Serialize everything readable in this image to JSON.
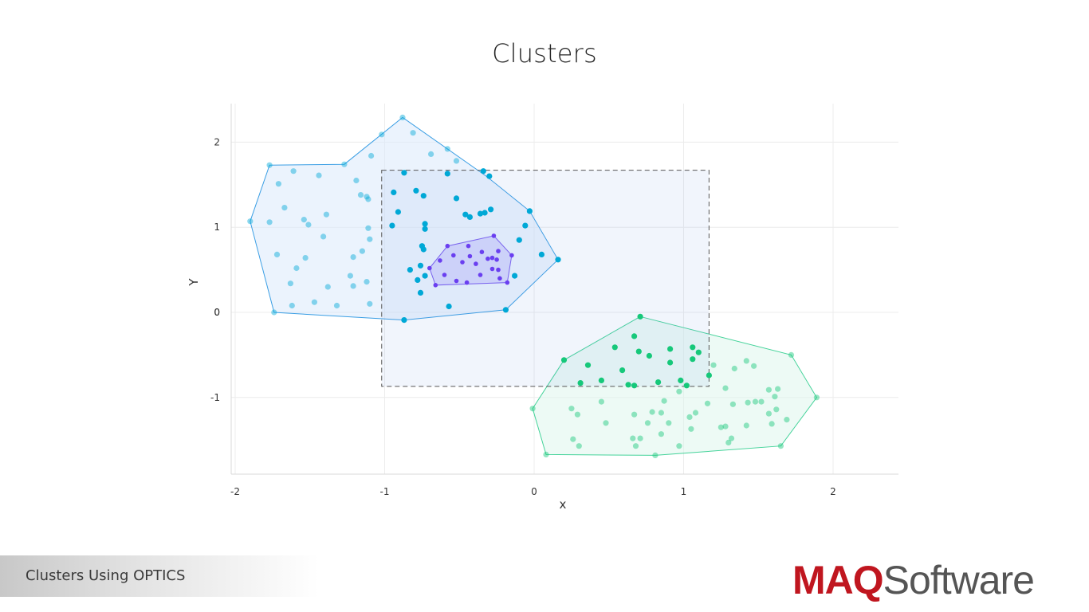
{
  "slide": {
    "title": "Clusters",
    "footer_text": "Clusters Using OPTICS",
    "logo_part1": "MAQ",
    "logo_part2": "Software"
  },
  "chart_data": {
    "type": "scatter",
    "title": "Clusters",
    "xlabel": "x",
    "ylabel": "Y",
    "xlim": [
      -2.05,
      2.45
    ],
    "ylim": [
      -1.9,
      2.45
    ],
    "xticks": [
      -2,
      -1,
      0,
      1,
      2
    ],
    "yticks": [
      -1,
      0,
      1,
      2
    ],
    "grid": true,
    "selection_box": {
      "x": [
        -1.02,
        1.17
      ],
      "y": [
        -0.87,
        1.67
      ]
    },
    "series": [
      {
        "color": "#00a8d6",
        "fill": "#dbe9fb",
        "stroke": "#3a9ee4",
        "hull": [
          [
            -1.9,
            1.07
          ],
          [
            -1.77,
            1.73
          ],
          [
            -1.27,
            1.74
          ],
          [
            -0.88,
            2.29
          ],
          [
            -0.32,
            1.6
          ],
          [
            -0.03,
            1.19
          ],
          [
            0.16,
            0.62
          ],
          [
            -0.19,
            0.03
          ],
          [
            -0.87,
            -0.09
          ],
          [
            -1.74,
            0.0
          ]
        ],
        "points": [
          [
            -1.9,
            1.07
          ],
          [
            -1.77,
            1.73
          ],
          [
            -1.61,
            1.66
          ],
          [
            -1.71,
            1.51
          ],
          [
            -1.67,
            1.23
          ],
          [
            -1.77,
            1.06
          ],
          [
            -1.54,
            1.09
          ],
          [
            -1.44,
            1.61
          ],
          [
            -1.27,
            1.74
          ],
          [
            -1.19,
            1.55
          ],
          [
            -1.16,
            1.38
          ],
          [
            -1.12,
            1.36
          ],
          [
            -1.11,
            1.33
          ],
          [
            -1.09,
            1.84
          ],
          [
            -1.02,
            2.09
          ],
          [
            -0.88,
            2.29
          ],
          [
            -0.81,
            2.11
          ],
          [
            -0.69,
            1.86
          ],
          [
            -0.58,
            1.92
          ],
          [
            -0.52,
            1.78
          ],
          [
            -1.39,
            1.15
          ],
          [
            -1.51,
            1.03
          ],
          [
            -1.41,
            0.89
          ],
          [
            -1.11,
            0.99
          ],
          [
            -1.1,
            0.86
          ],
          [
            -1.15,
            0.72
          ],
          [
            -1.21,
            0.65
          ],
          [
            -1.72,
            0.68
          ],
          [
            -1.59,
            0.52
          ],
          [
            -1.53,
            0.64
          ],
          [
            -1.23,
            0.43
          ],
          [
            -1.12,
            0.36
          ],
          [
            -1.63,
            0.34
          ],
          [
            -1.38,
            0.3
          ],
          [
            -1.21,
            0.31
          ],
          [
            -1.74,
            0.0
          ],
          [
            -1.62,
            0.08
          ],
          [
            -1.47,
            0.12
          ],
          [
            -1.32,
            0.08
          ],
          [
            -1.1,
            0.1
          ],
          [
            -0.87,
            1.64
          ],
          [
            -0.94,
            1.41
          ],
          [
            -0.91,
            1.18
          ],
          [
            -0.95,
            1.02
          ],
          [
            -0.79,
            1.43
          ],
          [
            -0.74,
            1.37
          ],
          [
            -0.73,
            1.04
          ],
          [
            -0.73,
            0.98
          ],
          [
            -0.58,
            1.63
          ],
          [
            -0.52,
            1.34
          ],
          [
            -0.46,
            1.15
          ],
          [
            -0.43,
            1.12
          ],
          [
            -0.36,
            1.16
          ],
          [
            -0.33,
            1.17
          ],
          [
            -0.29,
            1.21
          ],
          [
            -0.34,
            1.66
          ],
          [
            -0.3,
            1.6
          ],
          [
            -0.03,
            1.19
          ],
          [
            -0.06,
            1.02
          ],
          [
            -0.1,
            0.85
          ],
          [
            0.05,
            0.68
          ],
          [
            0.16,
            0.62
          ],
          [
            -0.75,
            0.78
          ],
          [
            -0.74,
            0.74
          ],
          [
            -0.76,
            0.55
          ],
          [
            -0.83,
            0.5
          ],
          [
            -0.78,
            0.38
          ],
          [
            -0.73,
            0.43
          ],
          [
            -0.76,
            0.23
          ],
          [
            -0.13,
            0.43
          ],
          [
            -0.57,
            0.07
          ],
          [
            -0.19,
            0.03
          ],
          [
            -0.87,
            -0.09
          ]
        ]
      },
      {
        "color": "#6a3ff0",
        "fill": "#c4c0fb",
        "stroke": "#7b5ef0",
        "hull": [
          [
            -0.7,
            0.52
          ],
          [
            -0.58,
            0.78
          ],
          [
            -0.27,
            0.9
          ],
          [
            -0.15,
            0.67
          ],
          [
            -0.18,
            0.35
          ],
          [
            -0.66,
            0.32
          ]
        ],
        "points": [
          [
            -0.7,
            0.52
          ],
          [
            -0.63,
            0.61
          ],
          [
            -0.58,
            0.78
          ],
          [
            -0.54,
            0.67
          ],
          [
            -0.48,
            0.59
          ],
          [
            -0.44,
            0.78
          ],
          [
            -0.43,
            0.66
          ],
          [
            -0.39,
            0.57
          ],
          [
            -0.35,
            0.71
          ],
          [
            -0.31,
            0.63
          ],
          [
            -0.27,
            0.9
          ],
          [
            -0.24,
            0.72
          ],
          [
            -0.28,
            0.64
          ],
          [
            -0.25,
            0.62
          ],
          [
            -0.28,
            0.51
          ],
          [
            -0.24,
            0.5
          ],
          [
            -0.23,
            0.4
          ],
          [
            -0.15,
            0.67
          ],
          [
            -0.36,
            0.44
          ],
          [
            -0.45,
            0.35
          ],
          [
            -0.52,
            0.37
          ],
          [
            -0.6,
            0.44
          ],
          [
            -0.66,
            0.32
          ],
          [
            -0.18,
            0.35
          ]
        ]
      },
      {
        "color": "#16c87a",
        "fill": "#dff6ec",
        "stroke": "#45d39a",
        "hull": [
          [
            0.71,
            -0.05
          ],
          [
            1.72,
            -0.5
          ],
          [
            1.89,
            -1.0
          ],
          [
            1.65,
            -1.57
          ],
          [
            0.81,
            -1.68
          ],
          [
            0.08,
            -1.67
          ],
          [
            -0.01,
            -1.13
          ],
          [
            0.2,
            -0.56
          ]
        ],
        "points": [
          [
            0.71,
            -0.05
          ],
          [
            0.67,
            -0.28
          ],
          [
            0.54,
            -0.41
          ],
          [
            0.7,
            -0.46
          ],
          [
            0.77,
            -0.51
          ],
          [
            0.91,
            -0.43
          ],
          [
            1.06,
            -0.41
          ],
          [
            1.1,
            -0.47
          ],
          [
            1.06,
            -0.55
          ],
          [
            0.91,
            -0.59
          ],
          [
            0.2,
            -0.56
          ],
          [
            0.36,
            -0.62
          ],
          [
            0.59,
            -0.68
          ],
          [
            0.45,
            -0.8
          ],
          [
            0.31,
            -0.83
          ],
          [
            0.63,
            -0.85
          ],
          [
            0.67,
            -0.86
          ],
          [
            0.83,
            -0.82
          ],
          [
            0.98,
            -0.8
          ],
          [
            1.02,
            -0.86
          ],
          [
            1.17,
            -0.74
          ],
          [
            1.2,
            -0.62
          ],
          [
            1.72,
            -0.5
          ],
          [
            1.42,
            -0.57
          ],
          [
            1.47,
            -0.63
          ],
          [
            1.34,
            -0.66
          ],
          [
            1.28,
            -0.89
          ],
          [
            1.63,
            -0.9
          ],
          [
            1.57,
            -0.91
          ],
          [
            1.61,
            -0.99
          ],
          [
            1.89,
            -1.0
          ],
          [
            1.52,
            -1.05
          ],
          [
            1.48,
            -1.05
          ],
          [
            1.43,
            -1.06
          ],
          [
            1.62,
            -1.14
          ],
          [
            1.57,
            -1.19
          ],
          [
            1.69,
            -1.26
          ],
          [
            1.59,
            -1.31
          ],
          [
            1.42,
            -1.33
          ],
          [
            1.33,
            -1.08
          ],
          [
            1.28,
            -1.34
          ],
          [
            1.25,
            -1.35
          ],
          [
            1.32,
            -1.48
          ],
          [
            1.3,
            -1.53
          ],
          [
            1.65,
            -1.57
          ],
          [
            0.97,
            -0.93
          ],
          [
            0.87,
            -1.04
          ],
          [
            1.16,
            -1.07
          ],
          [
            1.08,
            -1.18
          ],
          [
            1.04,
            -1.23
          ],
          [
            1.05,
            -1.37
          ],
          [
            0.9,
            -1.3
          ],
          [
            0.97,
            -1.57
          ],
          [
            0.79,
            -1.17
          ],
          [
            0.85,
            -1.18
          ],
          [
            0.76,
            -1.3
          ],
          [
            0.67,
            -1.2
          ],
          [
            0.85,
            -1.43
          ],
          [
            0.71,
            -1.48
          ],
          [
            0.66,
            -1.48
          ],
          [
            0.68,
            -1.57
          ],
          [
            0.81,
            -1.68
          ],
          [
            0.45,
            -1.05
          ],
          [
            0.48,
            -1.3
          ],
          [
            0.25,
            -1.13
          ],
          [
            0.29,
            -1.2
          ],
          [
            0.26,
            -1.49
          ],
          [
            0.3,
            -1.57
          ],
          [
            0.08,
            -1.67
          ],
          [
            -0.01,
            -1.13
          ]
        ]
      }
    ]
  }
}
